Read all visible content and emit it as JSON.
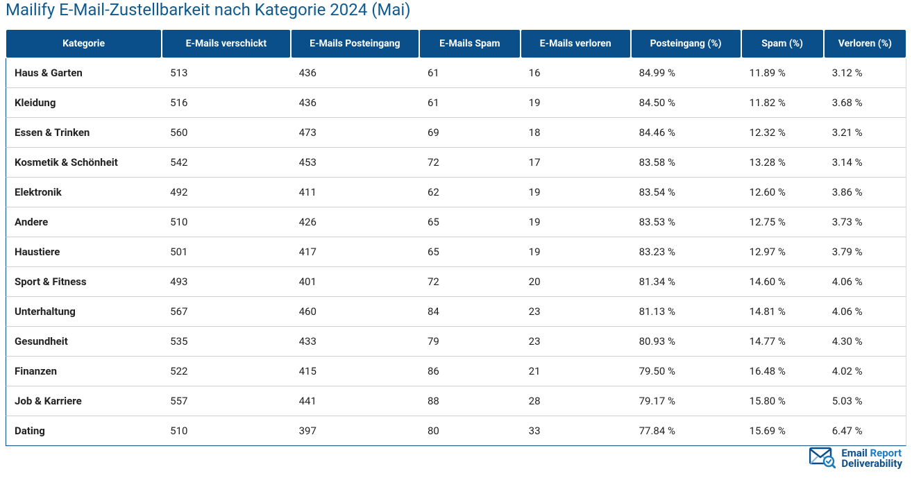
{
  "title": "Mailify E-Mail-Zustellbarkeit nach Kategorie 2024 (Mai)",
  "colors": {
    "title": "#0f5b8f",
    "header_bg": "#0b4f8a",
    "header_text": "#ffffff",
    "row_text": "#222222",
    "row_border": "#d0d0d0",
    "outer_border": "#0b4f8a",
    "logo_dark": "#0b4f8a",
    "logo_mid": "#1d7bc1",
    "logo_light": "#7db7e0",
    "logo_text_a": "#0b4f8a",
    "logo_text_b": "#1d7bc1"
  },
  "columns": [
    "Kategorie",
    "E-Mails verschickt",
    "E-Mails Posteingang",
    "E-Mails Spam",
    "E-Mails verloren",
    "Posteingang (%)",
    "Spam (%)",
    "Verloren (%)"
  ],
  "rows": [
    [
      "Haus & Garten",
      "513",
      "436",
      "61",
      "16",
      "84.99 %",
      "11.89 %",
      "3.12 %"
    ],
    [
      "Kleidung",
      "516",
      "436",
      "61",
      "19",
      "84.50 %",
      "11.82 %",
      "3.68 %"
    ],
    [
      "Essen & Trinken",
      "560",
      "473",
      "69",
      "18",
      "84.46 %",
      "12.32 %",
      "3.21 %"
    ],
    [
      "Kosmetik & Schönheit",
      "542",
      "453",
      "72",
      "17",
      "83.58 %",
      "13.28 %",
      "3.14 %"
    ],
    [
      "Elektronik",
      "492",
      "411",
      "62",
      "19",
      "83.54 %",
      "12.60 %",
      "3.86 %"
    ],
    [
      "Andere",
      "510",
      "426",
      "65",
      "19",
      "83.53 %",
      "12.75 %",
      "3.73 %"
    ],
    [
      "Haustiere",
      "501",
      "417",
      "65",
      "19",
      "83.23 %",
      "12.97 %",
      "3.79 %"
    ],
    [
      "Sport & Fitness",
      "493",
      "401",
      "72",
      "20",
      "81.34 %",
      "14.60 %",
      "4.06 %"
    ],
    [
      "Unterhaltung",
      "567",
      "460",
      "84",
      "23",
      "81.13 %",
      "14.81 %",
      "4.06 %"
    ],
    [
      "Gesundheit",
      "535",
      "433",
      "79",
      "23",
      "80.93 %",
      "14.77 %",
      "4.30 %"
    ],
    [
      "Finanzen",
      "522",
      "415",
      "86",
      "21",
      "79.50 %",
      "16.48 %",
      "4.02 %"
    ],
    [
      "Job & Karriere",
      "557",
      "441",
      "88",
      "28",
      "79.17 %",
      "15.80 %",
      "5.03 %"
    ],
    [
      "Dating",
      "510",
      "397",
      "80",
      "33",
      "77.84 %",
      "15.69 %",
      "6.47 %"
    ]
  ],
  "logo": {
    "line1a": "Email ",
    "line1b": "Report",
    "line2": "Deliverability"
  }
}
